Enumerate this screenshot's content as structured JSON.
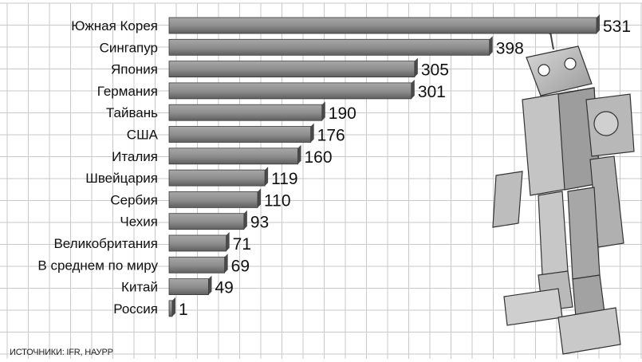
{
  "chart_data": {
    "type": "bar",
    "orientation": "horizontal",
    "categories": [
      "Южная Корея",
      "Сингапур",
      "Япония",
      "Германия",
      "Тайвань",
      "США",
      "Италия",
      "Швейцария",
      "Сербия",
      "Чехия",
      "Великобритания",
      "В среднем по миру",
      "Китай",
      "Россия"
    ],
    "values": [
      531,
      398,
      305,
      301,
      190,
      176,
      160,
      119,
      110,
      93,
      71,
      69,
      49,
      1
    ],
    "data_labels": [
      "531",
      "398",
      "305",
      "301",
      "190",
      "176",
      "160",
      "119",
      "110",
      "93",
      "71",
      "69",
      "49",
      "1"
    ],
    "xlim": [
      0,
      531
    ],
    "grid": true,
    "legend": "none"
  },
  "source_text": "ИСТОЧНИКИ: IFR, НАУРР",
  "colors": {
    "bar_top": "#9e9e9e",
    "bar_bottom": "#6b6b6b",
    "bar_edge": "#3a3a3a",
    "grid": "#c9c9c9",
    "text": "#111111"
  },
  "illustration": "robot-image"
}
